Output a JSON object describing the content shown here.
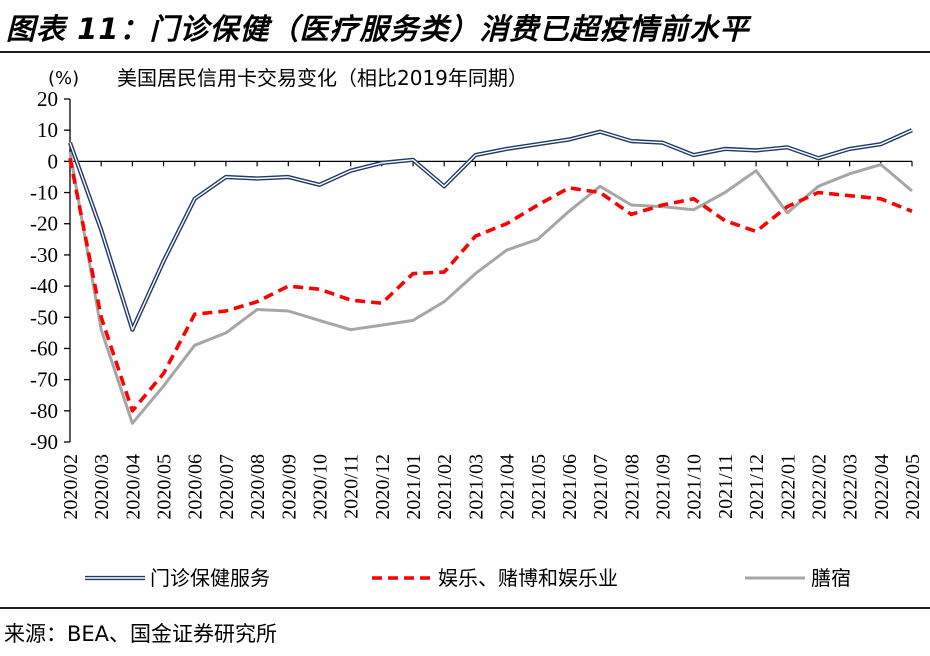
{
  "figure_title": "图表 11：门诊保健（医疗服务类）消费已超疫情前水平",
  "source_text": "来源：BEA、国金证券研究所",
  "chart_data": {
    "type": "line",
    "title": "美国居民信用卡交易变化（相比2019年同期）",
    "y_unit_label": "(%)",
    "ylim": [
      -90,
      20
    ],
    "y_ticks": [
      20,
      10,
      0,
      -10,
      -20,
      -30,
      -40,
      -50,
      -60,
      -70,
      -80,
      -90
    ],
    "grid": false,
    "legend_position": "bottom",
    "categories": [
      "2020/02",
      "2020/03",
      "2020/04",
      "2020/05",
      "2020/06",
      "2020/07",
      "2020/08",
      "2020/09",
      "2020/10",
      "2020/11",
      "2020/12",
      "2021/01",
      "2021/02",
      "2021/03",
      "2021/04",
      "2021/05",
      "2021/06",
      "2021/07",
      "2021/08",
      "2021/09",
      "2021/10",
      "2021/11",
      "2021/12",
      "2022/01",
      "2022/02",
      "2022/03",
      "2022/04",
      "2022/05"
    ],
    "series": [
      {
        "name": "门诊保健服务",
        "color": "#1f3864",
        "style": "double",
        "values": [
          6,
          -22,
          -54,
          -32,
          -12,
          -5,
          -5.5,
          -5,
          -7.5,
          -3,
          -0.5,
          0.5,
          -8,
          2,
          4,
          5.5,
          7,
          9.5,
          6.5,
          6,
          2,
          4,
          3.5,
          4.5,
          1,
          4,
          5.5,
          10
        ]
      },
      {
        "name": "娱乐、赌博和娱乐业",
        "color": "#ff0000",
        "style": "dashed",
        "values": [
          1,
          -50,
          -80,
          -68,
          -49,
          -48,
          -45,
          -40,
          -41,
          -44.5,
          -45.5,
          -36,
          -35.5,
          -24,
          -20,
          -14,
          -8.5,
          -10,
          -17,
          -14,
          -12,
          -19,
          -22.5,
          -14.5,
          -10,
          -11,
          -12,
          -16
        ]
      },
      {
        "name": "膳宿",
        "color": "#a6a6a6",
        "style": "solid",
        "values": [
          3,
          -54,
          -84,
          -72,
          -59,
          -55,
          -47.5,
          -48,
          -51,
          -54,
          -52.5,
          -51,
          -45,
          -36,
          -28.5,
          -25,
          -16,
          -8,
          -14,
          -14.5,
          -15.5,
          -10,
          -3,
          -16.5,
          -8,
          -4,
          -1,
          -9.5
        ]
      }
    ]
  }
}
